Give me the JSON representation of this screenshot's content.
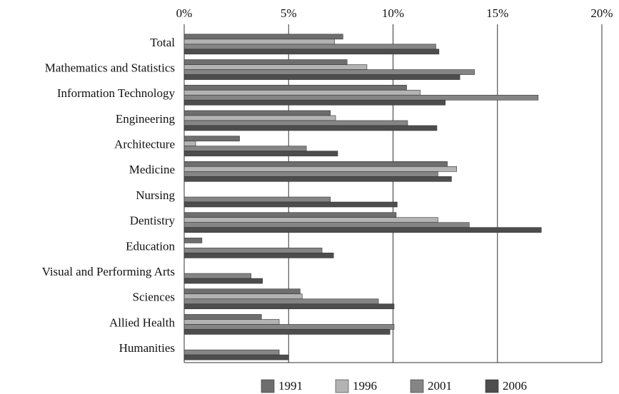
{
  "chart_data": {
    "type": "hbar",
    "categories": [
      "Total",
      "Mathematics and Statistics",
      "Information Technology",
      "Engineering",
      "Architecture",
      "Medicine",
      "Nursing",
      "Dentistry",
      "Education",
      "Visual and Performing Arts",
      "Sciences",
      "Allied Health",
      "Humanities"
    ],
    "series": [
      {
        "name": "1991",
        "color": "#6e6e6e",
        "values": [
          7.6,
          7.8,
          10.65,
          7.0,
          2.65,
          12.6,
          null,
          10.15,
          0.85,
          null,
          5.55,
          3.7,
          null
        ]
      },
      {
        "name": "1996",
        "color": "#b3b3b3",
        "values": [
          7.2,
          8.75,
          11.3,
          7.25,
          0.55,
          13.05,
          null,
          12.15,
          null,
          null,
          5.65,
          4.55,
          null
        ]
      },
      {
        "name": "2001",
        "color": "#858585",
        "values": [
          12.05,
          13.9,
          16.95,
          10.7,
          5.85,
          12.15,
          7.0,
          13.65,
          6.6,
          3.2,
          9.3,
          10.05,
          4.55
        ]
      },
      {
        "name": "2006",
        "color": "#4d4d4d",
        "values": [
          12.2,
          13.2,
          12.5,
          12.1,
          7.35,
          12.8,
          10.2,
          17.1,
          7.15,
          3.75,
          10.05,
          9.85,
          5.0
        ]
      }
    ],
    "xlim": [
      0,
      20
    ],
    "xticks": [
      {
        "value": 0,
        "label": "0%"
      },
      {
        "value": 5,
        "label": "5%"
      },
      {
        "value": 10,
        "label": "10%"
      },
      {
        "value": 15,
        "label": "15%"
      },
      {
        "value": 20,
        "label": "20%"
      }
    ],
    "grid": true
  }
}
